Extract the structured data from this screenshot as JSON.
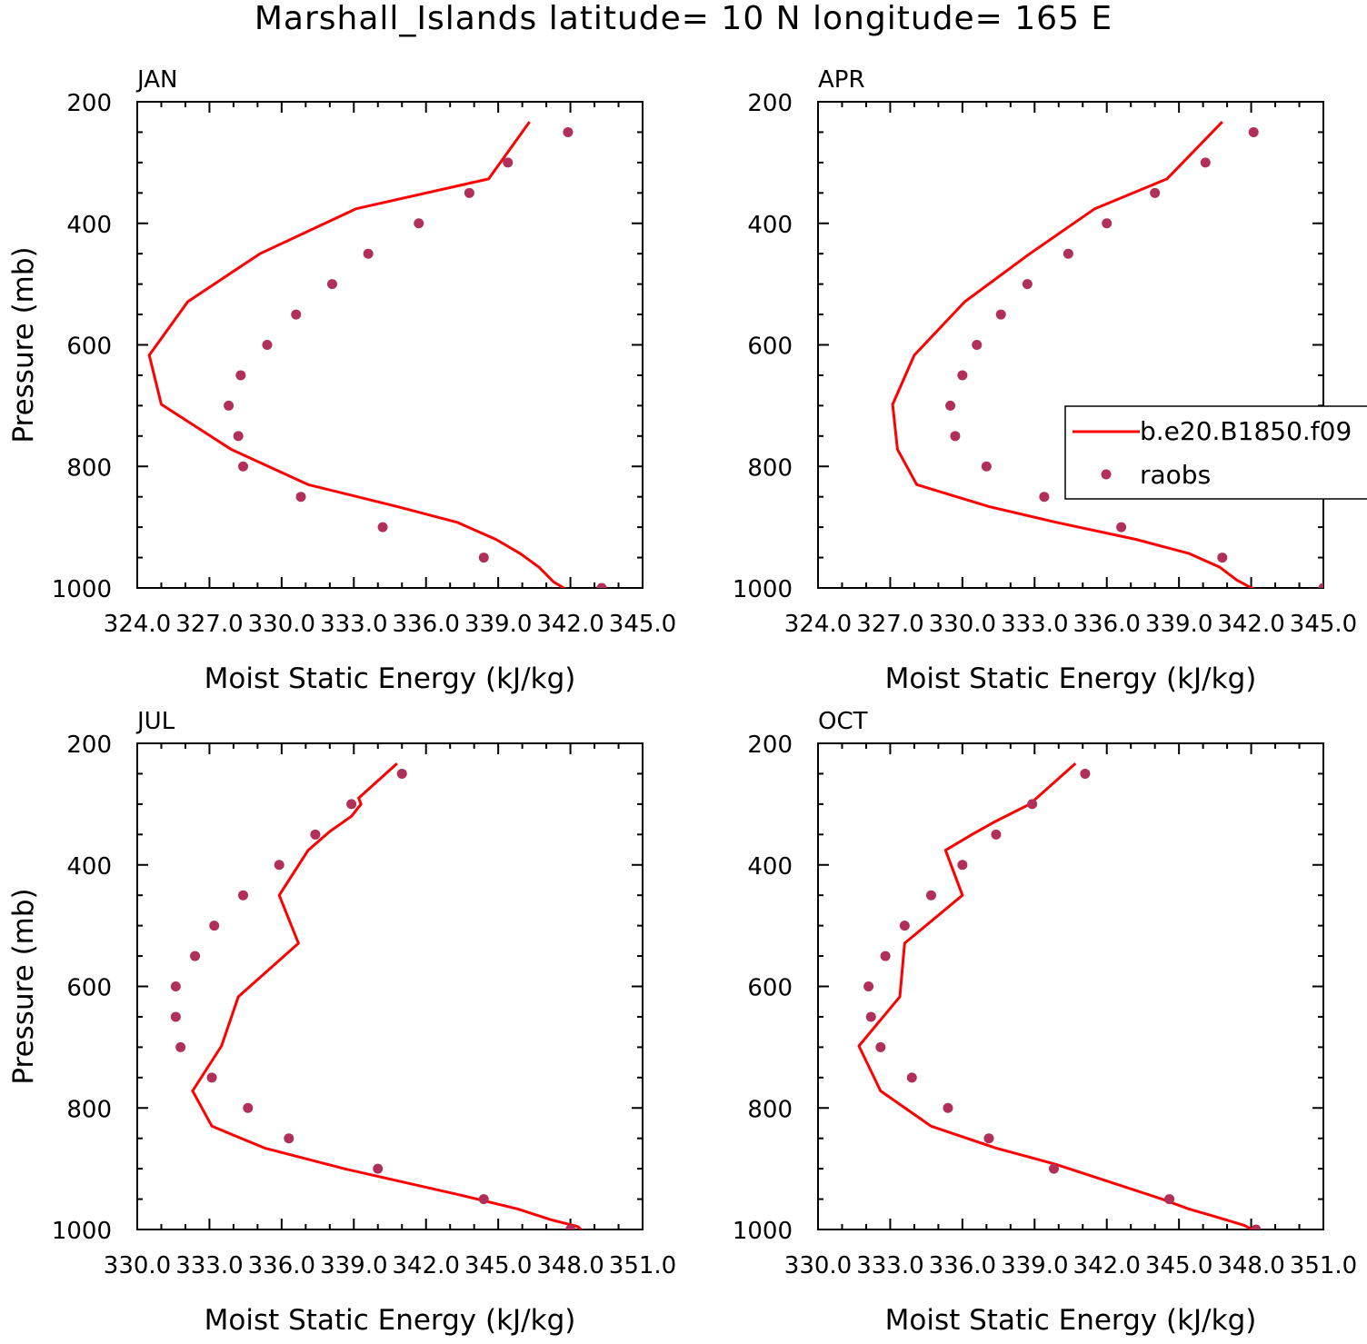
{
  "figure_title": "Marshall_Islands  latitude= 10 N longitude= 165 E",
  "legend": {
    "line_label": "b.e20.B1850.f09",
    "dot_label": "raobs"
  },
  "colors": {
    "line": "#ff0000",
    "dots": "#b0305a",
    "axes": "#000000"
  },
  "chart_data": [
    {
      "type": "line",
      "title": "JAN",
      "xlabel": "Moist Static Energy (kJ/kg)",
      "ylabel": "Pressure (mb)",
      "xlim": [
        324.0,
        345.0
      ],
      "ylim": [
        1000,
        200
      ],
      "xticks": [
        "324.0",
        "327.0",
        "330.0",
        "333.0",
        "336.0",
        "339.0",
        "342.0",
        "345.0"
      ],
      "yticks": [
        "200",
        "400",
        "600",
        "800",
        "1000"
      ],
      "series": [
        {
          "name": "b.e20.B1850.f09",
          "kind": "line",
          "x": [
            341.8,
            341.3,
            340.7,
            339.9,
            338.9,
            337.3,
            334.8,
            331.1,
            327.9,
            325.0,
            324.5,
            326.1,
            329.1,
            333.1,
            338.6,
            340.3
          ],
          "y": [
            1002,
            990,
            966,
            943,
            920,
            892,
            866,
            830,
            772,
            698,
            617,
            529,
            450,
            376,
            327,
            233
          ]
        },
        {
          "name": "raobs",
          "kind": "scatter",
          "x": [
            343.3,
            338.4,
            334.2,
            330.8,
            328.4,
            328.2,
            327.8,
            328.3,
            329.4,
            330.6,
            332.1,
            333.6,
            335.7,
            337.8,
            339.4,
            341.9
          ],
          "y": [
            1000,
            950,
            900,
            850,
            800,
            750,
            700,
            650,
            600,
            550,
            500,
            450,
            400,
            350,
            300,
            250
          ]
        }
      ]
    },
    {
      "type": "line",
      "title": "APR",
      "xlabel": "Moist Static Energy (kJ/kg)",
      "ylabel": "",
      "xlim": [
        324.0,
        345.0
      ],
      "ylim": [
        1000,
        200
      ],
      "xticks": [
        "324.0",
        "327.0",
        "330.0",
        "333.0",
        "336.0",
        "339.0",
        "342.0",
        "345.0"
      ],
      "yticks": [
        "200",
        "400",
        "600",
        "800",
        "1000"
      ],
      "series": [
        {
          "name": "b.e20.B1850.f09",
          "kind": "line",
          "x": [
            342.2,
            341.4,
            340.7,
            339.4,
            337.2,
            333.9,
            331.1,
            328.1,
            327.3,
            327.1,
            328.0,
            330.1,
            332.8,
            335.5,
            338.5,
            340.8
          ],
          "y": [
            1004,
            987,
            966,
            943,
            920,
            892,
            866,
            830,
            772,
            698,
            617,
            529,
            450,
            376,
            327,
            233
          ]
        },
        {
          "name": "raobs",
          "kind": "scatter",
          "x": [
            345.0,
            340.8,
            336.6,
            333.4,
            331.0,
            329.7,
            329.5,
            330.0,
            330.6,
            331.6,
            332.7,
            334.4,
            336.0,
            338.0,
            340.1,
            342.1
          ],
          "y": [
            1000,
            950,
            900,
            850,
            800,
            750,
            700,
            650,
            600,
            550,
            500,
            450,
            400,
            350,
            300,
            250
          ]
        }
      ]
    },
    {
      "type": "line",
      "title": "JUL",
      "xlabel": "Moist Static Energy (kJ/kg)",
      "ylabel": "Pressure (mb)",
      "xlim": [
        330.0,
        351.0
      ],
      "ylim": [
        1000,
        200
      ],
      "xticks": [
        "330.0",
        "333.0",
        "336.0",
        "339.0",
        "342.0",
        "345.0",
        "348.0",
        "351.0"
      ],
      "yticks": [
        "200",
        "400",
        "600",
        "800",
        "1000"
      ],
      "series": [
        {
          "name": "b.e20.B1850.f09",
          "kind": "line",
          "x": [
            348.5,
            348.3,
            347.2,
            345.8,
            343.4,
            338.6,
            335.3,
            333.1,
            332.3,
            333.5,
            334.2,
            336.7,
            335.9,
            337.1,
            338.0,
            338.9,
            339.3,
            339.2,
            340.8
          ],
          "y": [
            1002,
            995,
            984,
            966,
            943,
            900,
            866,
            830,
            772,
            698,
            617,
            529,
            450,
            376,
            345,
            320,
            300,
            290,
            233
          ]
        },
        {
          "name": "raobs",
          "kind": "scatter",
          "x": [
            348.0,
            344.4,
            340.0,
            336.3,
            334.6,
            333.1,
            331.8,
            331.6,
            331.6,
            332.4,
            333.2,
            334.4,
            335.9,
            337.4,
            338.9,
            341.0
          ],
          "y": [
            1000,
            950,
            900,
            850,
            800,
            750,
            700,
            650,
            600,
            550,
            500,
            450,
            400,
            350,
            300,
            250
          ]
        }
      ]
    },
    {
      "type": "line",
      "title": "OCT",
      "xlabel": "Moist Static Energy (kJ/kg)",
      "ylabel": "",
      "xlim": [
        330.0,
        351.0
      ],
      "ylim": [
        1000,
        200
      ],
      "xticks": [
        "330.0",
        "333.0",
        "336.0",
        "339.0",
        "342.0",
        "345.0",
        "348.0",
        "351.0"
      ],
      "yticks": [
        "200",
        "400",
        "600",
        "800",
        "1000"
      ],
      "series": [
        {
          "name": "b.e20.B1850.f09",
          "kind": "line",
          "x": [
            348.2,
            347.7,
            346.6,
            345.4,
            344.3,
            339.9,
            337.4,
            334.7,
            332.6,
            331.7,
            333.4,
            333.6,
            336.0,
            335.3,
            336.4,
            337.3,
            338.8,
            340.7
          ],
          "y": [
            1003,
            993,
            980,
            966,
            950,
            893,
            866,
            830,
            772,
            698,
            617,
            529,
            450,
            376,
            350,
            330,
            300,
            233
          ]
        },
        {
          "name": "raobs",
          "kind": "scatter",
          "x": [
            348.2,
            344.6,
            339.8,
            337.1,
            335.4,
            333.9,
            332.6,
            332.2,
            332.1,
            332.8,
            333.6,
            334.7,
            336.0,
            337.4,
            338.9,
            341.1
          ],
          "y": [
            1000,
            950,
            900,
            850,
            800,
            750,
            700,
            650,
            600,
            550,
            500,
            450,
            400,
            350,
            300,
            250
          ]
        }
      ]
    }
  ]
}
